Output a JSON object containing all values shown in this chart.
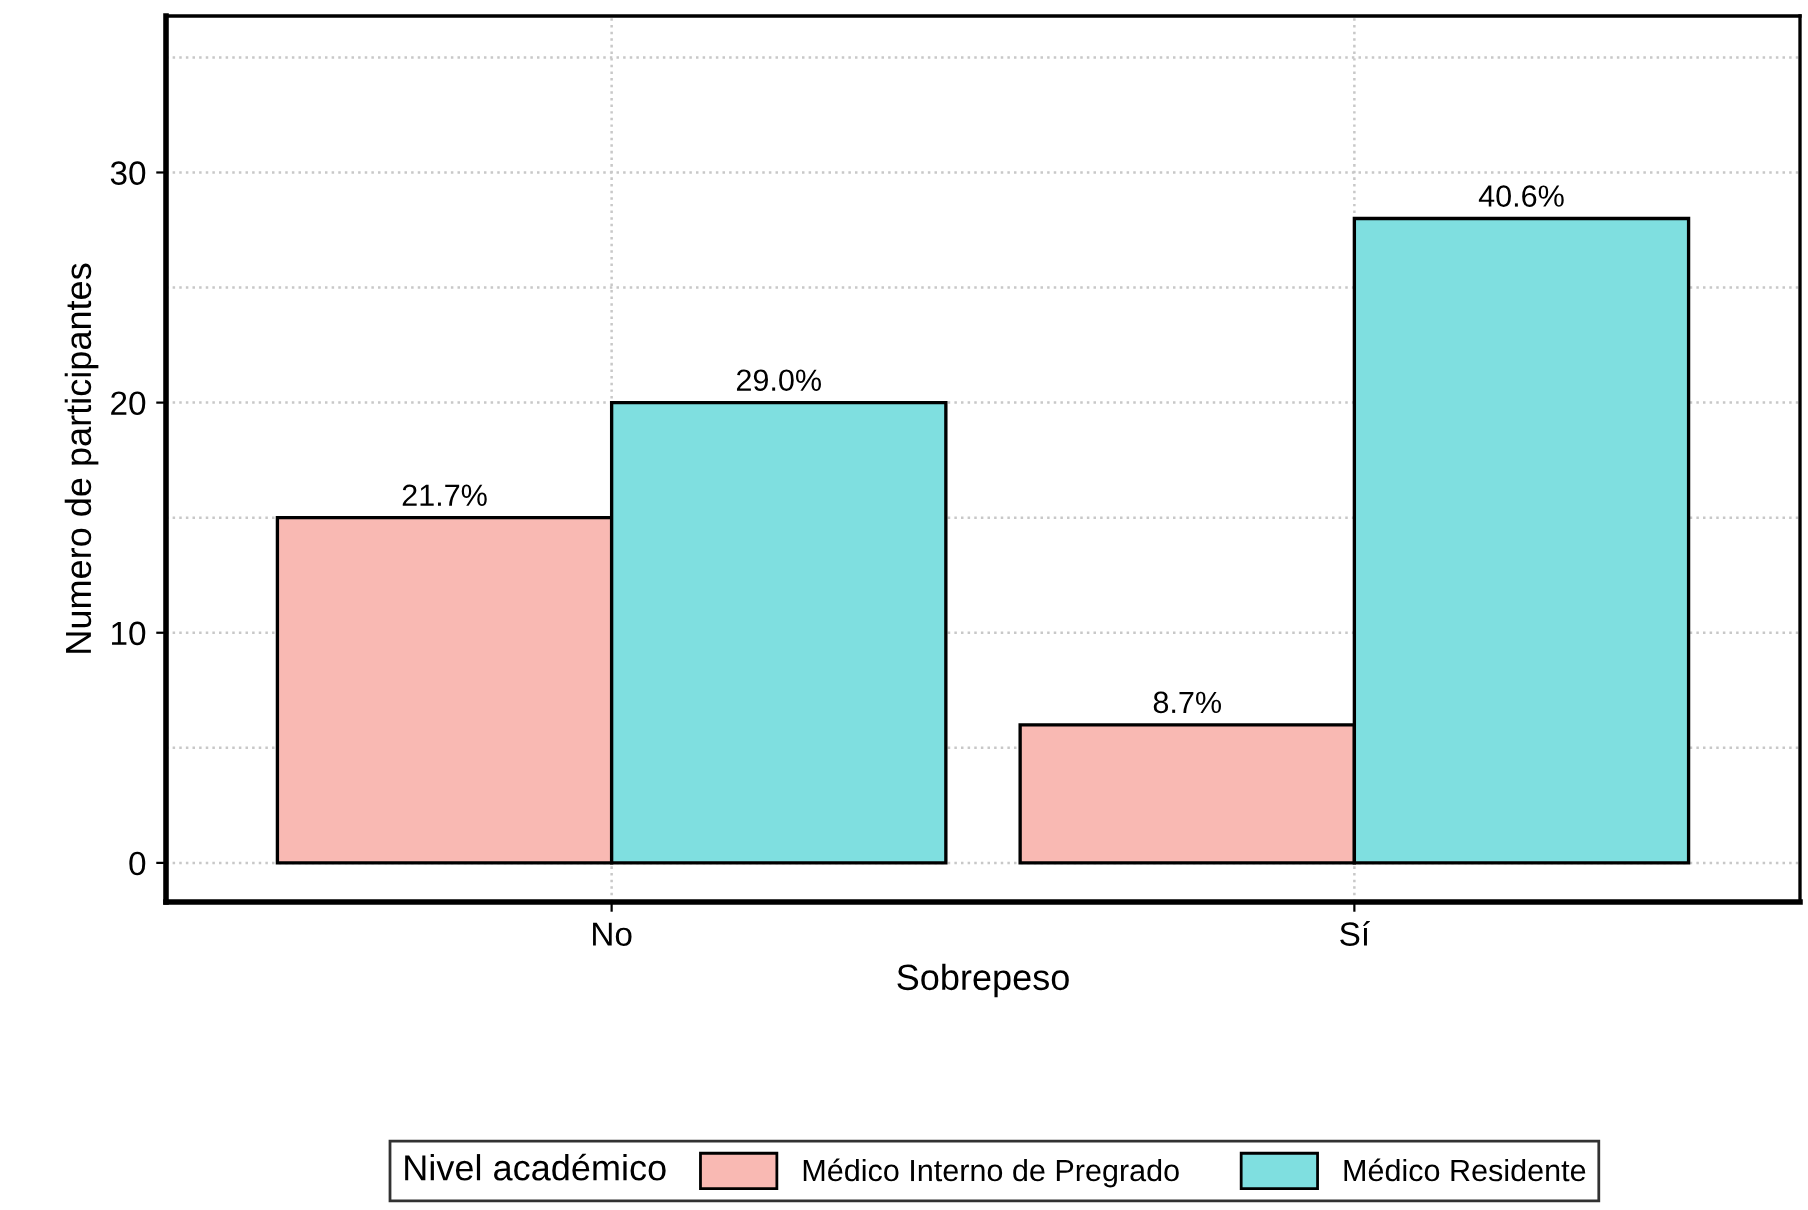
{
  "chart_data": {
    "type": "bar",
    "xlabel": "Sobrepeso",
    "ylabel": "Numero de participantes",
    "legend_title": "Nivel académico",
    "categories": [
      "No",
      "Sí"
    ],
    "series": [
      {
        "name": "Médico Interno de Pregrado",
        "color": "#f9b9b3",
        "values": [
          15,
          6
        ]
      },
      {
        "name": "Médico Residente",
        "color": "#7fdfe0",
        "values": [
          20,
          28
        ]
      }
    ],
    "annotations": [
      "21.7%",
      "29.0%",
      "8.7%",
      "40.6%"
    ],
    "ylim": [
      -1.7,
      36.8
    ],
    "yticks": [
      0,
      {
        "value": 5,
        "label": null
      },
      10,
      {
        "value": 15,
        "label": null
      },
      20,
      {
        "value": 25,
        "label": null
      },
      30,
      {
        "value": 35,
        "label": null
      }
    ],
    "grid": true,
    "legend": "bottom"
  }
}
